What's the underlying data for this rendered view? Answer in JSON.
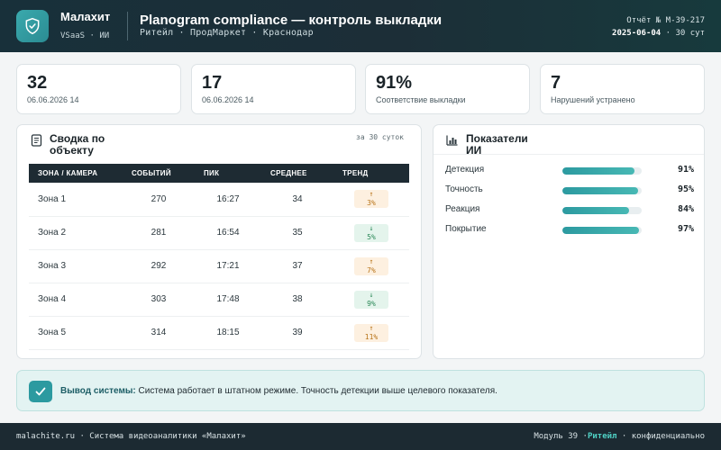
{
  "header": {
    "brand": "Малахит",
    "brand_sub": "VSaaS · ИИ",
    "title": "Planogram compliance — контроль выкладки",
    "subtitle": "Ритейл · ПродМаркет · Краснодар",
    "report_line": "Отчёт № M-39-217",
    "report_date": "2025-06-04",
    "report_period": "· 30 сут"
  },
  "kpis": [
    {
      "value": "32",
      "label": "06.06.2026 14"
    },
    {
      "value": "17",
      "label": "06.06.2026 14"
    },
    {
      "value": "91%",
      "label": "Соответствие выкладки"
    },
    {
      "value": "7",
      "label": "Нарушений устранено"
    }
  ],
  "summary": {
    "title": "Сводка по объекту",
    "period": "за 30 суток",
    "columns": [
      "ЗОНА / КАМЕРА",
      "СОБЫТИЙ",
      "ПИК",
      "СРЕДНЕЕ",
      "ТРЕНД"
    ],
    "rows": [
      {
        "zone": "Зона 1",
        "events": "270",
        "peak": "16:27",
        "avg": "34",
        "arrow": "↑",
        "trend": "3%",
        "dir": "up"
      },
      {
        "zone": "Зона 2",
        "events": "281",
        "peak": "16:54",
        "avg": "35",
        "arrow": "↓",
        "trend": "5%",
        "dir": "down"
      },
      {
        "zone": "Зона 3",
        "events": "292",
        "peak": "17:21",
        "avg": "37",
        "arrow": "↑",
        "trend": "7%",
        "dir": "up"
      },
      {
        "zone": "Зона 4",
        "events": "303",
        "peak": "17:48",
        "avg": "38",
        "arrow": "↓",
        "trend": "9%",
        "dir": "down"
      },
      {
        "zone": "Зона 5",
        "events": "314",
        "peak": "18:15",
        "avg": "39",
        "arrow": "↑",
        "trend": "11%",
        "dir": "up"
      }
    ]
  },
  "ai_metrics": {
    "title": "Показатели ИИ",
    "items": [
      {
        "label": "Детекция",
        "value": "91%",
        "fraction": 0.91
      },
      {
        "label": "Точность",
        "value": "95%",
        "fraction": 0.95
      },
      {
        "label": "Реакция",
        "value": "84%",
        "fraction": 0.84
      },
      {
        "label": "Покрытие",
        "value": "97%",
        "fraction": 0.97
      }
    ]
  },
  "conclusion": {
    "label": "Вывод системы:",
    "text": "Система работает в штатном режиме. Точность детекции выше целевого показателя."
  },
  "footer": {
    "left": "malachite.ru · Система видеоаналитики «Малахит»",
    "module": "Модуль 39 ·",
    "segment": "Ритейл",
    "confidential": "· конфиденциально"
  },
  "colors": {
    "accent": "#2c9aa0",
    "header_bg": "#1c2e37",
    "trend_up": "#b8741a",
    "trend_down": "#2e8a5a"
  }
}
